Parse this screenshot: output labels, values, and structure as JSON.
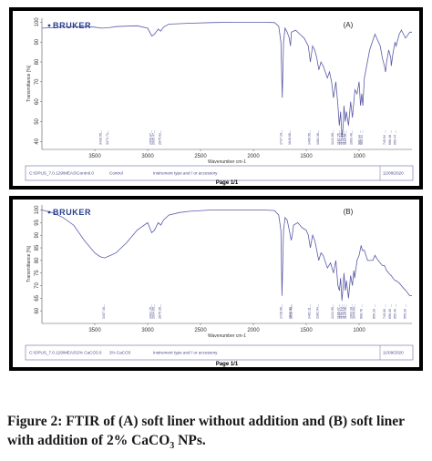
{
  "caption": {
    "prefix": "Figure 2: FTIR of (A) soft liner without addition and (B) soft liner with addition of 2% CaCO",
    "subscript": "3",
    "suffix": " NPs."
  },
  "chart_data": [
    {
      "type": "line",
      "panel_label": "(A)",
      "logo": "BRUKER",
      "xlabel": "Wavenumber cm-1",
      "ylabel": "Transmittance [%]",
      "x_reversed": true,
      "xlim": [
        4000,
        500
      ],
      "ylim": [
        36,
        102
      ],
      "x_ticks": [
        3500,
        3000,
        2500,
        2000,
        1500,
        1000
      ],
      "y_ticks": [
        40,
        50,
        60,
        70,
        80,
        90,
        100
      ],
      "peak_labels": [
        "3436.95",
        "3371.71",
        "2959.87",
        "2935.47",
        "2875.62",
        "1727.19",
        "1648.68",
        "1460.95",
        "1381.36",
        "1241.85",
        "1187.35",
        "1162.14",
        "1143.12",
        "1119.56",
        "1063.46",
        "986.44",
        "965.01",
        "749.94",
        "696.48",
        "650.44"
      ],
      "series": [
        {
          "color": "#5a5aa8",
          "x": [
            4000,
            3800,
            3600,
            3500,
            3440,
            3372,
            3300,
            3200,
            3100,
            3000,
            2960,
            2935,
            2900,
            2876,
            2850,
            2800,
            2600,
            2400,
            2200,
            2000,
            1900,
            1800,
            1760,
            1740,
            1727,
            1715,
            1700,
            1680,
            1660,
            1649,
            1640,
            1600,
            1560,
            1520,
            1500,
            1480,
            1461,
            1440,
            1420,
            1400,
            1381,
            1360,
            1340,
            1300,
            1280,
            1260,
            1242,
            1220,
            1200,
            1187,
            1175,
            1162,
            1150,
            1143,
            1130,
            1120,
            1100,
            1080,
            1063,
            1040,
            1020,
            1000,
            986,
            975,
            965,
            950,
            900,
            850,
            800,
            780,
            760,
            750,
            740,
            720,
            700,
            696,
            680,
            660,
            650,
            620,
            600,
            560,
            520,
            500
          ],
          "y": [
            97,
            97.5,
            97.8,
            97.5,
            97,
            97.2,
            97.8,
            98,
            98.2,
            97,
            93,
            94,
            96.5,
            95.5,
            97.5,
            99,
            99.5,
            99.8,
            100,
            100,
            100,
            99.8,
            98,
            90,
            62,
            90,
            97,
            95,
            92,
            88,
            95,
            96,
            94,
            92,
            90,
            88,
            80,
            88,
            86,
            82,
            76,
            80,
            78,
            72,
            75,
            70,
            62,
            70,
            58,
            48,
            55,
            42,
            48,
            58,
            50,
            55,
            48,
            60,
            52,
            66,
            64,
            70,
            58,
            64,
            58,
            72,
            86,
            94,
            88,
            82,
            78,
            75,
            80,
            86,
            82,
            78,
            84,
            90,
            88,
            94,
            96,
            92,
            95,
            95
          ]
        }
      ],
      "footer": {
        "path": "C:\\OPUS_7.0.129\\MEAS\\Control.0",
        "sample": "Control",
        "instrument": "Instrument type and / or accessory",
        "date": "11/08/2020"
      },
      "page": "Page 1/1"
    },
    {
      "type": "line",
      "panel_label": "(B)",
      "logo": "BRUKER",
      "xlabel": "Wavenumber cm-1",
      "ylabel": "Transmittance [%]",
      "x_reversed": true,
      "xlim": [
        4000,
        500
      ],
      "ylim": [
        55,
        102
      ],
      "x_ticks": [
        3500,
        3000,
        2500,
        2000,
        1500,
        1000
      ],
      "y_ticks": [
        60,
        65,
        70,
        75,
        80,
        85,
        90,
        95,
        100
      ],
      "peak_labels": [
        "3407.30",
        "2962.25",
        "2934.65",
        "2875.36",
        "1728.90",
        "1642.01",
        "1632.40",
        "1461.11",
        "1381.94",
        "1241.90",
        "1186.47",
        "1162.13",
        "1143.19",
        "1120.48",
        "1063.39",
        "1040.60",
        "968.78",
        "850.20",
        "749.60",
        "696.30",
        "650.40",
        "555.20"
      ],
      "series": [
        {
          "color": "#5a5aa8",
          "x": [
            4000,
            3900,
            3800,
            3700,
            3600,
            3500,
            3450,
            3407,
            3350,
            3300,
            3200,
            3100,
            3000,
            2962,
            2935,
            2900,
            2875,
            2850,
            2800,
            2700,
            2600,
            2400,
            2200,
            2000,
            1900,
            1800,
            1760,
            1740,
            1729,
            1715,
            1700,
            1680,
            1660,
            1642,
            1632,
            1620,
            1580,
            1540,
            1500,
            1480,
            1461,
            1440,
            1420,
            1400,
            1382,
            1360,
            1340,
            1300,
            1270,
            1242,
            1220,
            1200,
            1186,
            1175,
            1162,
            1150,
            1143,
            1130,
            1120,
            1100,
            1080,
            1063,
            1050,
            1041,
            1020,
            1000,
            980,
            969,
            950,
            920,
            900,
            870,
            850,
            820,
            800,
            780,
            760,
            750,
            740,
            720,
            700,
            696,
            680,
            660,
            650,
            620,
            600,
            580,
            556,
            540,
            520,
            500
          ],
          "y": [
            100,
            99,
            97,
            94,
            88,
            83,
            81.5,
            81,
            82,
            83,
            87,
            92,
            95,
            91,
            92,
            95,
            94,
            96,
            98,
            99,
            99.5,
            100,
            100,
            100,
            100,
            99.8,
            98,
            92,
            66,
            92,
            97,
            96,
            92,
            88,
            90,
            94,
            95,
            93,
            92,
            90,
            85,
            90,
            88,
            84,
            80,
            83,
            82,
            77,
            79,
            75,
            80,
            70,
            68,
            73,
            64,
            70,
            75,
            68,
            72,
            65,
            74,
            70,
            76,
            73,
            80,
            82,
            86,
            84,
            84,
            80,
            80,
            80,
            82,
            80,
            79,
            78,
            78,
            77,
            76,
            75,
            74,
            74,
            73,
            72,
            72,
            71,
            70,
            69,
            68,
            67,
            66,
            66
          ]
        }
      ],
      "footer": {
        "path": "C:\\OPUS_7.0.129\\MEAS\\2% CaCO3.0",
        "sample": "2% CaCO3",
        "instrument": "Instrument type and / or accessory",
        "date": "11/09/2020"
      },
      "page": "Page 1/1"
    }
  ]
}
